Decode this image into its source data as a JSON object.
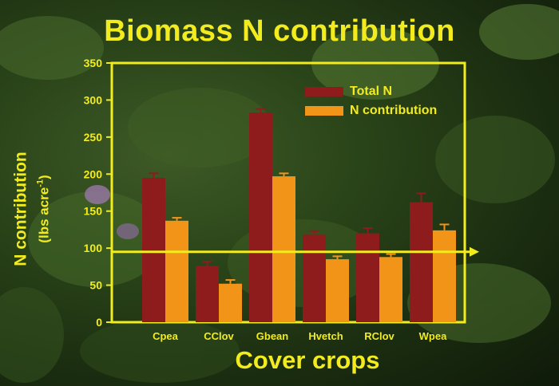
{
  "title": "Biomass N contribution",
  "colors": {
    "axis": "#f2ec1e",
    "total_n": "#8e1c1c",
    "n_contribution": "#f29418"
  },
  "chart_data": {
    "type": "bar",
    "title": "Biomass N contribution",
    "xlabel": "Cover crops",
    "ylabel": "N contribution",
    "ylabel_unit": "(lbs acre",
    "ylabel_unit_exp": "-1",
    "ylabel_unit_close": ")",
    "ylim": [
      0,
      350
    ],
    "yticks": [
      0,
      50,
      100,
      150,
      200,
      250,
      300,
      350
    ],
    "categories": [
      "Cpea",
      "CClov",
      "Gbean",
      "Hvetch",
      "RClov",
      "Wpea"
    ],
    "series": [
      {
        "name": "Total N",
        "color": "#8e1c1c",
        "values": [
          195,
          76,
          283,
          118,
          120,
          162
        ],
        "errors": [
          6,
          6,
          5,
          5,
          7,
          12
        ]
      },
      {
        "name": "N contribution",
        "color": "#f29418",
        "values": [
          137,
          52,
          197,
          85,
          88,
          124
        ],
        "errors": [
          4,
          5,
          4,
          4,
          4,
          8
        ]
      }
    ],
    "reference_line": 95,
    "grid": false,
    "legend": "top-right"
  }
}
